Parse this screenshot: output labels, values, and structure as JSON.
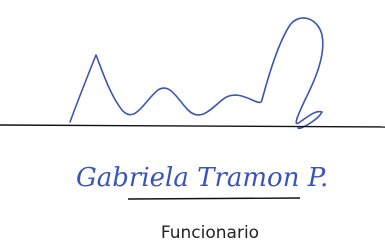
{
  "signature": {
    "handwritten_name": "Gabriela Tramon P.",
    "role": "Funcionario"
  }
}
